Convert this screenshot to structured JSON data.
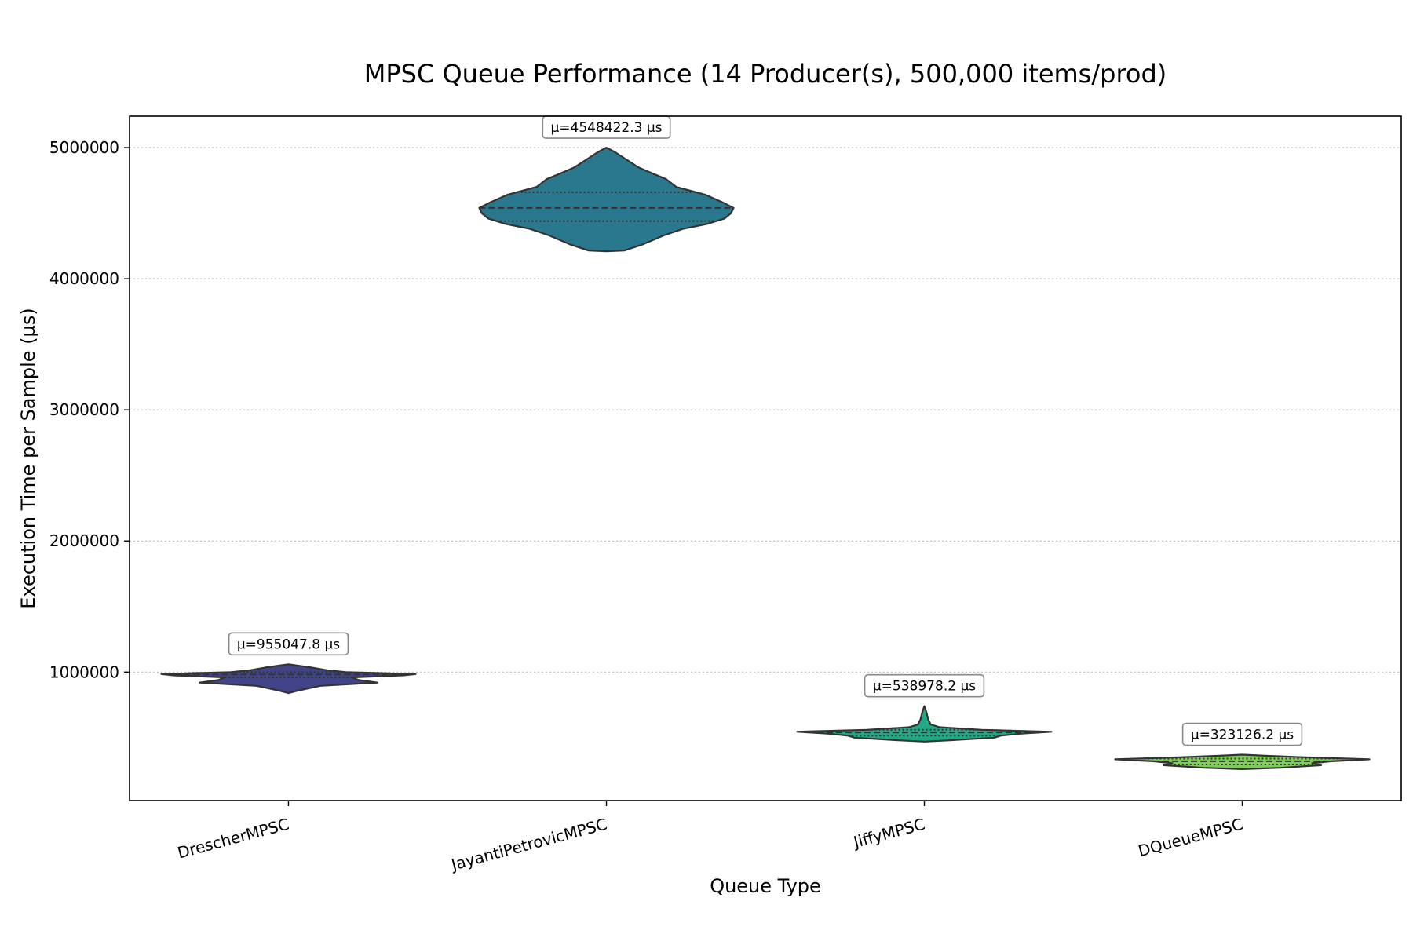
{
  "chart_data": {
    "type": "violin",
    "title": "MPSC Queue Performance (14 Producer(s), 500,000 items/prod)",
    "xlabel": "Queue Type",
    "ylabel": "Execution Time per Sample (µs)",
    "ylim": [
      20000,
      5240000
    ],
    "yticks": [
      1000000,
      2000000,
      3000000,
      4000000,
      5000000
    ],
    "ytick_labels": [
      "1000000",
      "2000000",
      "3000000",
      "4000000",
      "5000000"
    ],
    "grid": "y-dotted",
    "categories": [
      "DrescherMPSC",
      "JayantiPetrovicMPSC",
      "JiffyMPSC",
      "DQueueMPSC"
    ],
    "series": [
      {
        "category": "DrescherMPSC",
        "color": "#414487",
        "mean_label": "μ=955047.8 µs",
        "mean": 955047.8,
        "min": 840000,
        "q1": 960000,
        "median": 982000,
        "q3": 1000000,
        "max": 1060000,
        "profile": [
          [
            840000,
            0.0
          ],
          [
            860000,
            0.08
          ],
          [
            895000,
            0.25
          ],
          [
            920000,
            0.7
          ],
          [
            940000,
            0.55
          ],
          [
            960000,
            0.5
          ],
          [
            975000,
            0.9
          ],
          [
            985000,
            1.0
          ],
          [
            1000000,
            0.45
          ],
          [
            1015000,
            0.3
          ],
          [
            1035000,
            0.18
          ],
          [
            1060000,
            0.0
          ]
        ]
      },
      {
        "category": "JayantiPetrovicMPSC",
        "color": "#2a788e",
        "mean_label": "μ=4548422.3 µs",
        "mean": 4548422.3,
        "min": 4210000,
        "q1": 4440000,
        "median": 4540000,
        "q3": 4660000,
        "max": 5000000,
        "profile": [
          [
            4210000,
            0.0
          ],
          [
            4215000,
            0.14
          ],
          [
            4260000,
            0.28
          ],
          [
            4330000,
            0.45
          ],
          [
            4380000,
            0.6
          ],
          [
            4420000,
            0.8
          ],
          [
            4460000,
            0.93
          ],
          [
            4500000,
            0.98
          ],
          [
            4540000,
            1.0
          ],
          [
            4580000,
            0.92
          ],
          [
            4640000,
            0.78
          ],
          [
            4700000,
            0.55
          ],
          [
            4760000,
            0.47
          ],
          [
            4800000,
            0.37
          ],
          [
            4850000,
            0.25
          ],
          [
            4920000,
            0.14
          ],
          [
            4970000,
            0.06
          ],
          [
            5000000,
            0.0
          ]
        ]
      },
      {
        "category": "JiffyMPSC",
        "color": "#22a884",
        "mean_label": "μ=538978.2 µs",
        "mean": 538978.2,
        "min": 470000,
        "q1": 515000,
        "median": 540000,
        "q3": 560000,
        "max": 740000,
        "profile": [
          [
            470000,
            0.0
          ],
          [
            480000,
            0.2
          ],
          [
            500000,
            0.55
          ],
          [
            515000,
            0.6
          ],
          [
            530000,
            0.75
          ],
          [
            545000,
            1.0
          ],
          [
            560000,
            0.45
          ],
          [
            580000,
            0.12
          ],
          [
            600000,
            0.05
          ],
          [
            640000,
            0.03
          ],
          [
            700000,
            0.015
          ],
          [
            740000,
            0.0
          ]
        ]
      },
      {
        "category": "DQueueMPSC",
        "color": "#7ad151",
        "mean_label": "μ=323126.2 µs",
        "mean": 323126.2,
        "min": 260000,
        "q1": 295000,
        "median": 320000,
        "q3": 340000,
        "max": 370000,
        "profile": [
          [
            260000,
            0.0
          ],
          [
            270000,
            0.3
          ],
          [
            290000,
            0.62
          ],
          [
            305000,
            0.55
          ],
          [
            320000,
            0.7
          ],
          [
            335000,
            1.0
          ],
          [
            350000,
            0.5
          ],
          [
            362000,
            0.18
          ],
          [
            370000,
            0.0
          ]
        ]
      }
    ]
  }
}
